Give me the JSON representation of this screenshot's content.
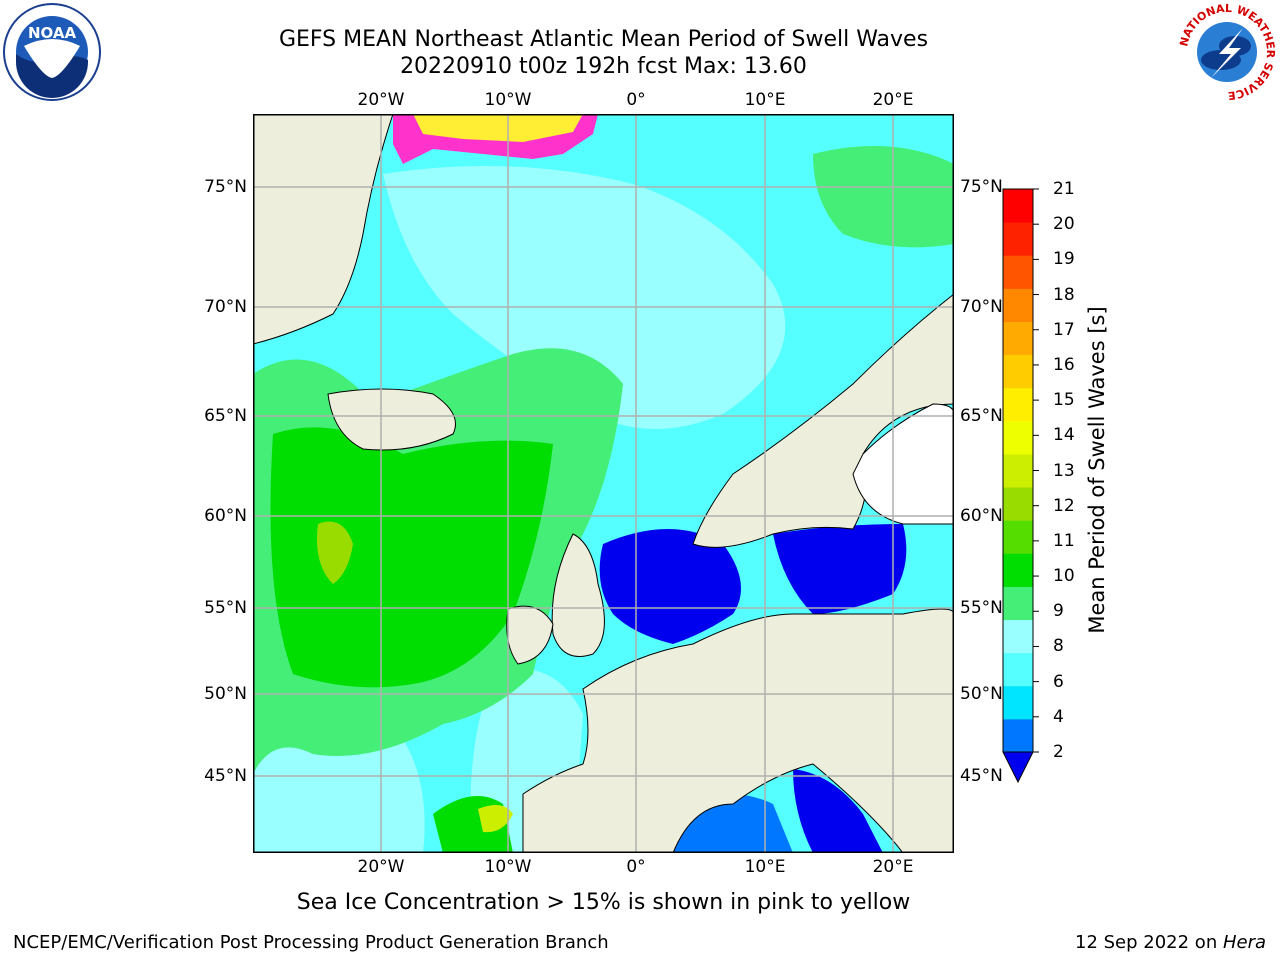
{
  "title": {
    "line1": "GEFS MEAN Northeast Atlantic Mean Period of Swell Waves",
    "line2": "20220910 t00z 192h fcst   Max: 13.60"
  },
  "map": {
    "lon_ticks": [
      "20°W",
      "10°W",
      "0°",
      "10°E",
      "20°E"
    ],
    "lat_ticks": [
      "75°N",
      "70°N",
      "65°N",
      "60°N",
      "55°N",
      "50°N",
      "45°N"
    ],
    "colors": {
      "land": "#eeeedd",
      "ice_pink": "#ff33cc",
      "ice_yellow": "#ffee33",
      "grid": "#b0b0b0"
    }
  },
  "colorbar": {
    "title": "Mean Period of Swell Waves [s]",
    "labels": [
      "21",
      "20",
      "19",
      "18",
      "17",
      "16",
      "15",
      "14",
      "13",
      "12",
      "11",
      "10",
      "9",
      "8",
      "6",
      "4",
      "2"
    ],
    "colors": [
      "#0000ee",
      "#0077ff",
      "#00e5ff",
      "#55ffff",
      "#99ffff",
      "#44ee77",
      "#00dd00",
      "#55dd00",
      "#99dd00",
      "#ccee00",
      "#eeff00",
      "#ffee00",
      "#ffcc00",
      "#ffaa00",
      "#ff8800",
      "#ff5500",
      "#ff2200",
      "#ff0000"
    ]
  },
  "note": "Sea Ice Concentration > 15% is shown in pink to yellow",
  "footer": {
    "left": "NCEP/EMC/Verification Post Processing Product Generation Branch",
    "right_date": "12 Sep 2022 on ",
    "right_host": "Hera"
  },
  "logos": {
    "noaa_text": "NOAA",
    "nws_ring_text": "NATIONAL WEATHER SERVICE"
  }
}
